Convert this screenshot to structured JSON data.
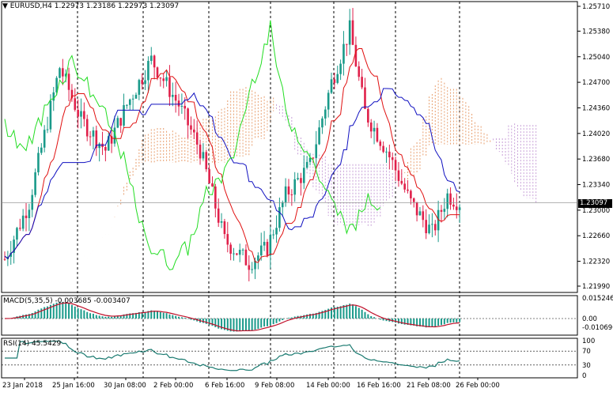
{
  "header": {
    "symbol_label": "EURUSD,H4",
    "ohlc": "1.22973 1.23186 1.22973 1.23097",
    "dropdown_icon": "triangle-down-icon"
  },
  "price_axis": {
    "ticks": [
      "1.25710",
      "1.25380",
      "1.25040",
      "1.24700",
      "1.24360",
      "1.24020",
      "1.23680",
      "1.23340",
      "1.23000",
      "1.22660",
      "1.22320",
      "1.21990"
    ],
    "current_price": "1.23097"
  },
  "macd": {
    "label": "MACD(5,35,5) -0.003685 -0.003407",
    "ticks": [
      "0.015246",
      "0.00",
      "-0.010696"
    ]
  },
  "rsi": {
    "label": "RSI(14) 45.5429",
    "ticks": [
      "100",
      "70",
      "30",
      "0"
    ]
  },
  "time_axis": {
    "labels": [
      "23 Jan 2018",
      "25 Jan 16:00",
      "30 Jan 08:00",
      "2 Feb 00:00",
      "6 Feb 16:00",
      "9 Feb 08:00",
      "14 Feb 00:00",
      "16 Feb 16:00",
      "21 Feb 08:00",
      "26 Feb 00:00"
    ]
  },
  "colors": {
    "bull": "#1a9a8a",
    "bear": "#e0204a",
    "tenkan": "#e01010",
    "kijun": "#1010c0",
    "chikou": "#22dd22",
    "cloud_a": "#e8a070",
    "cloud_b": "#c8a0d8",
    "grid": "#000000"
  }
}
